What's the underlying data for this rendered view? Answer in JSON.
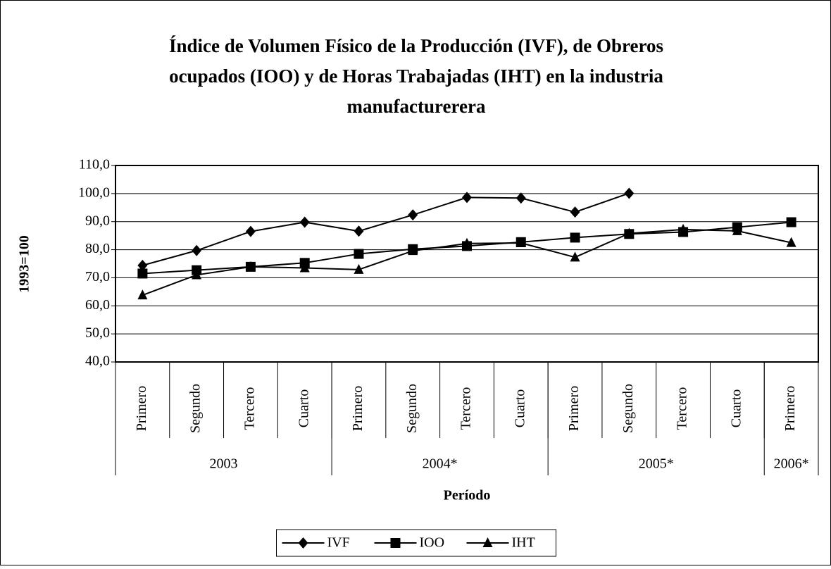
{
  "chart_data": {
    "type": "line",
    "title": [
      "Índice de Volumen Físico de la Producción (IVF), de Obreros",
      "ocupados (IOO) y de Horas Trabajadas (IHT) en la industria",
      "manufacturerera"
    ],
    "y_label": "1993=100",
    "x_label": "Período",
    "categories": [
      "Primero",
      "Segundo",
      "Tercero",
      "Cuarto",
      "Primero",
      "Segundo",
      "Tercero",
      "Cuarto",
      "Primero",
      "Segundo",
      "Tercero",
      "Cuarto",
      "Primero"
    ],
    "groups": [
      {
        "label": "2003",
        "count": 4
      },
      {
        "label": "2004*",
        "count": 4
      },
      {
        "label": "2005*",
        "count": 4
      },
      {
        "label": "2006*",
        "count": 1
      }
    ],
    "ylim": [
      40,
      110
    ],
    "yticks": [
      {
        "value": 40,
        "label": "40,0"
      },
      {
        "value": 50,
        "label": "50,0"
      },
      {
        "value": 60,
        "label": "60,0"
      },
      {
        "value": 70,
        "label": "70,0"
      },
      {
        "value": 80,
        "label": "80,0"
      },
      {
        "value": 90,
        "label": "90,0"
      },
      {
        "value": 100,
        "label": "100,0"
      },
      {
        "value": 110,
        "label": "110,0"
      }
    ],
    "grid": true,
    "legend": "bottom",
    "series": [
      {
        "name": "IVF",
        "color": "#000000",
        "marker": "diamond",
        "values": [
          74.4,
          79.7,
          86.5,
          89.8,
          86.6,
          92.4,
          98.6,
          98.4,
          93.4,
          100.1,
          null,
          null,
          null
        ]
      },
      {
        "name": "IOO",
        "color": "#000000",
        "marker": "square",
        "values": [
          71.5,
          72.7,
          73.9,
          75.3,
          78.5,
          80.2,
          81.3,
          82.7,
          84.3,
          85.6,
          86.3,
          88.0,
          89.8
        ]
      },
      {
        "name": "IHT",
        "color": "#000000",
        "marker": "triangle",
        "values": [
          63.8,
          71.0,
          73.9,
          73.5,
          72.9,
          79.6,
          82.2,
          82.4,
          77.3,
          85.8,
          87.2,
          86.7,
          82.5
        ]
      }
    ]
  }
}
